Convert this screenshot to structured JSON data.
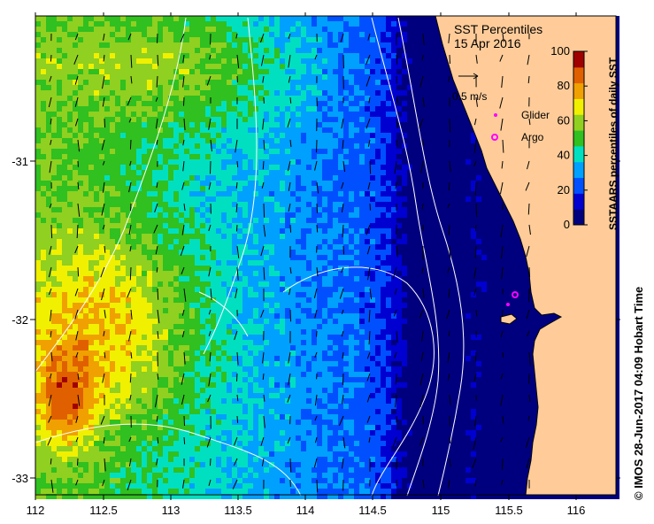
{
  "map": {
    "title": "SST Percentiles",
    "date": "15 Apr 2016",
    "vector_scale_label": "0.5 m/s",
    "legend": {
      "glider": "Glider",
      "argo": "Argo"
    },
    "credit": "© IMOS 28-Jun-2017 04:09 Hobart Time",
    "x_ticks": [
      "112",
      "112.5",
      "113",
      "113.5",
      "114",
      "114.5",
      "115",
      "115.5",
      "116"
    ],
    "y_ticks": [
      "-31",
      "-32",
      "-33"
    ],
    "colorbar": {
      "label": "SSTAARS percentiles of daily SST",
      "ticks": [
        "0",
        "20",
        "40",
        "60",
        "80",
        "100"
      ],
      "colors": [
        "#00007f",
        "#0000d0",
        "#0050ff",
        "#00a0ff",
        "#00e0c0",
        "#30c020",
        "#90d020",
        "#f0f000",
        "#f0a000",
        "#e06000",
        "#a00000"
      ]
    },
    "colors": {
      "land": "#ffcc99",
      "ocean_mid": "#00a0ff"
    }
  }
}
